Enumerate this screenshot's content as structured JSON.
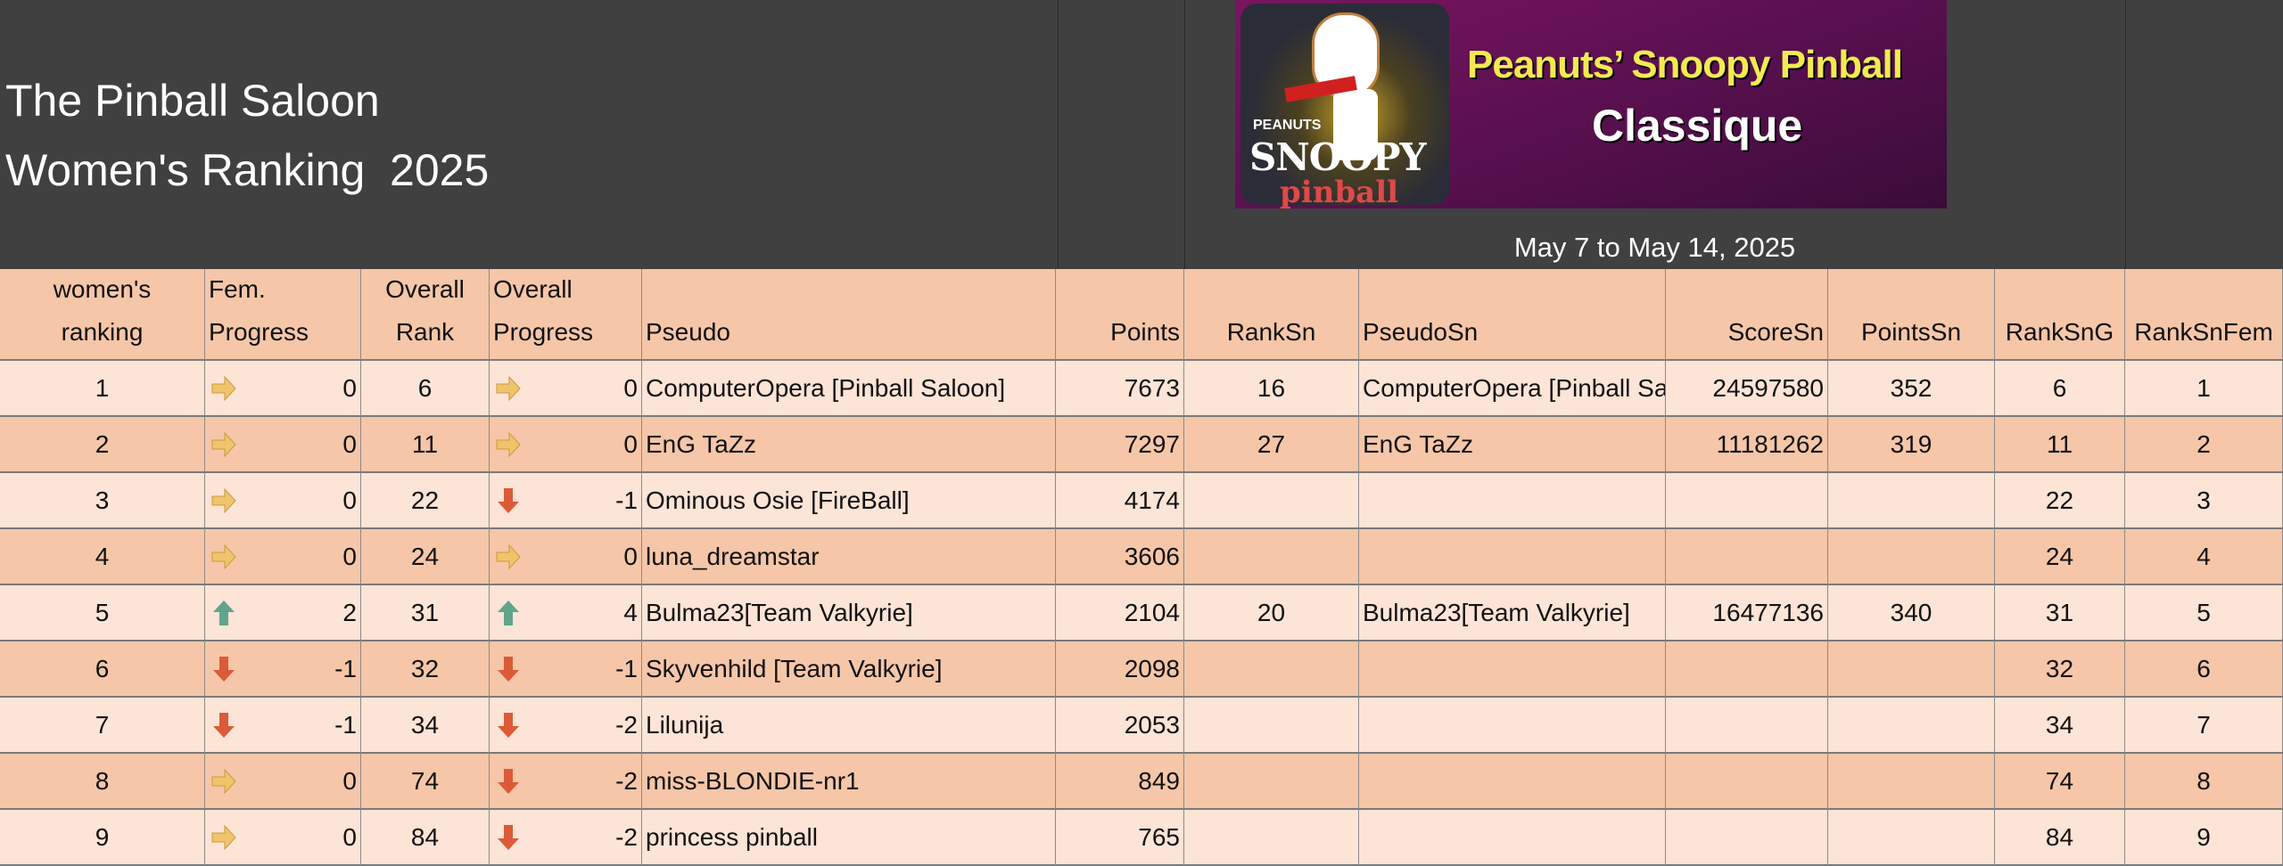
{
  "header": {
    "title_line1": "The Pinball Saloon",
    "title_line2": "Women's Ranking  2025",
    "banner": {
      "logo_small": "PEANUTS",
      "logo_main": "SNOOPY",
      "logo_sub": "pinball",
      "title": "Peanuts’ Snoopy Pinball",
      "subtitle": "Classique"
    },
    "date_range": "May 7 to May 14, 2025"
  },
  "colors": {
    "header_bg": "#404040",
    "row_light": "#fce4d6",
    "row_dark": "#f6c6a8",
    "arrow_right": "#f0c46a",
    "arrow_up": "#5fa58a",
    "arrow_down": "#dc5a38"
  },
  "columns": [
    [
      "women's",
      "ranking"
    ],
    [
      "Fem.",
      "Progress"
    ],
    [
      "Overall",
      "Rank"
    ],
    [
      "Overall",
      "Progress"
    ],
    [
      "",
      "Pseudo"
    ],
    [
      "",
      "Points"
    ],
    [
      "",
      "RankSn"
    ],
    [
      "",
      "PseudoSn"
    ],
    [
      "",
      "ScoreSn"
    ],
    [
      "",
      "PointsSn"
    ],
    [
      "",
      "RankSnG"
    ],
    [
      "",
      "RankSnFem"
    ]
  ],
  "rows": [
    {
      "rank": "1",
      "fem_icon": "arrow-right",
      "fem": "0",
      "overall_rank": "6",
      "ov_icon": "arrow-right",
      "ov": "0",
      "pseudo": "ComputerOpera [Pinball Saloon]",
      "points": "7673",
      "rank_sn": "16",
      "pseudo_sn": "ComputerOpera [Pinball Saloon]",
      "score_sn": "24597580",
      "points_sn": "352",
      "rank_sng": "6",
      "rank_sn_fem": "1"
    },
    {
      "rank": "2",
      "fem_icon": "arrow-right",
      "fem": "0",
      "overall_rank": "11",
      "ov_icon": "arrow-right",
      "ov": "0",
      "pseudo": "EnG TaZz",
      "points": "7297",
      "rank_sn": "27",
      "pseudo_sn": "EnG TaZz",
      "score_sn": "11181262",
      "points_sn": "319",
      "rank_sng": "11",
      "rank_sn_fem": "2"
    },
    {
      "rank": "3",
      "fem_icon": "arrow-right",
      "fem": "0",
      "overall_rank": "22",
      "ov_icon": "arrow-down",
      "ov": "-1",
      "pseudo": "Ominous Osie [FireBall]",
      "points": "4174",
      "rank_sn": "",
      "pseudo_sn": "",
      "score_sn": "",
      "points_sn": "",
      "rank_sng": "22",
      "rank_sn_fem": "3"
    },
    {
      "rank": "4",
      "fem_icon": "arrow-right",
      "fem": "0",
      "overall_rank": "24",
      "ov_icon": "arrow-right",
      "ov": "0",
      "pseudo": "luna_dreamstar",
      "points": "3606",
      "rank_sn": "",
      "pseudo_sn": "",
      "score_sn": "",
      "points_sn": "",
      "rank_sng": "24",
      "rank_sn_fem": "4"
    },
    {
      "rank": "5",
      "fem_icon": "arrow-up",
      "fem": "2",
      "overall_rank": "31",
      "ov_icon": "arrow-up",
      "ov": "4",
      "pseudo": "Bulma23[Team Valkyrie]",
      "points": "2104",
      "rank_sn": "20",
      "pseudo_sn": "Bulma23[Team Valkyrie]",
      "score_sn": "16477136",
      "points_sn": "340",
      "rank_sng": "31",
      "rank_sn_fem": "5"
    },
    {
      "rank": "6",
      "fem_icon": "arrow-down",
      "fem": "-1",
      "overall_rank": "32",
      "ov_icon": "arrow-down",
      "ov": "-1",
      "pseudo": "Skyvenhild [Team Valkyrie]",
      "points": "2098",
      "rank_sn": "",
      "pseudo_sn": "",
      "score_sn": "",
      "points_sn": "",
      "rank_sng": "32",
      "rank_sn_fem": "6"
    },
    {
      "rank": "7",
      "fem_icon": "arrow-down",
      "fem": "-1",
      "overall_rank": "34",
      "ov_icon": "arrow-down",
      "ov": "-2",
      "pseudo": "Lilunija",
      "points": "2053",
      "rank_sn": "",
      "pseudo_sn": "",
      "score_sn": "",
      "points_sn": "",
      "rank_sng": "34",
      "rank_sn_fem": "7"
    },
    {
      "rank": "8",
      "fem_icon": "arrow-right",
      "fem": "0",
      "overall_rank": "74",
      "ov_icon": "arrow-down",
      "ov": "-2",
      "pseudo": "miss-BLONDIE-nr1",
      "points": "849",
      "rank_sn": "",
      "pseudo_sn": "",
      "score_sn": "",
      "points_sn": "",
      "rank_sng": "74",
      "rank_sn_fem": "8"
    },
    {
      "rank": "9",
      "fem_icon": "arrow-right",
      "fem": "0",
      "overall_rank": "84",
      "ov_icon": "arrow-down",
      "ov": "-2",
      "pseudo": "princess pinball",
      "points": "765",
      "rank_sn": "",
      "pseudo_sn": "",
      "score_sn": "",
      "points_sn": "",
      "rank_sng": "84",
      "rank_sn_fem": "9"
    }
  ]
}
